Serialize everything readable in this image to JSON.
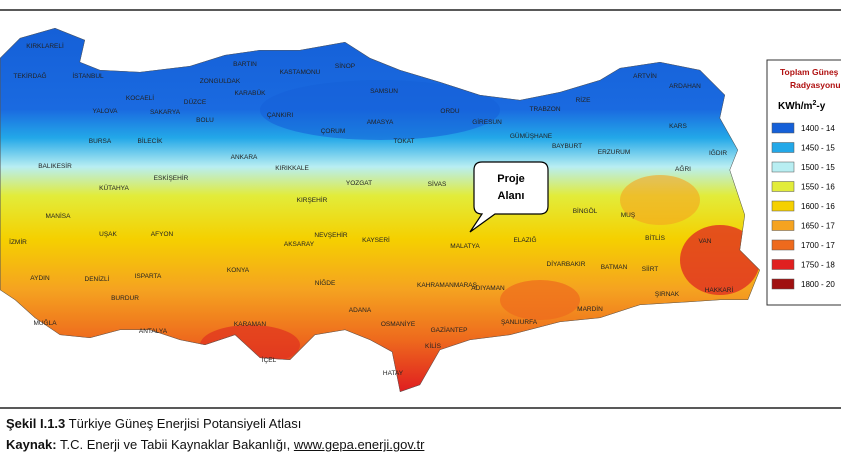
{
  "map": {
    "cities": [
      "KIRKLARELİ",
      "TEKİRDAĞ",
      "İSTANBUL",
      "BARTIN",
      "KASTAMONU",
      "SİNOP",
      "ZONGULDAK",
      "KARABÜK",
      "SAMSUN",
      "KOCAELİ",
      "DÜZCE",
      "YALOVA",
      "SAKARYA",
      "BOLU",
      "ÇANKIRI",
      "AMASYA",
      "ORDU",
      "GİRESUN",
      "TRABZON",
      "RİZE",
      "ARTVİN",
      "ARDAHAN",
      "KARS",
      "GÜMÜŞHANE",
      "BAYBURT",
      "BURSA",
      "BİLECİK",
      "ÇORUM",
      "TOKAT",
      "ERZURUM",
      "IĞDIR",
      "ANKARA",
      "KIRIKKALE",
      "BALIKESİR",
      "ESKİŞEHİR",
      "YOZGAT",
      "SİVAS",
      "AĞRI",
      "KÜTAHYA",
      "KIRŞEHİR",
      "BİNGÖL",
      "MUŞ",
      "MANİSA",
      "UŞAK",
      "AFYON",
      "NEVŞEHİR",
      "KAYSERİ",
      "MALATYA",
      "ELAZIĞ",
      "BİTLİS",
      "VAN",
      "İZMİR",
      "AKSARAY",
      "KONYA",
      "DİYARBAKIR",
      "BATMAN",
      "SİİRT",
      "AYDIN",
      "DENİZLİ",
      "ISPARTA",
      "NİĞDE",
      "KAHRAMANMARAŞ",
      "ADIYAMAN",
      "ŞIRNAK",
      "HAKKARİ",
      "BURDUR",
      "MARDİN",
      "ADANA",
      "OSMANİYE",
      "ŞANLIURFA",
      "GAZİANTEP",
      "MUĞLA",
      "ANTALYA",
      "KARAMAN",
      "KİLİS",
      "İÇEL",
      "HATAY"
    ],
    "callout": [
      "Proje",
      "Alanı"
    ],
    "legend": {
      "title": [
        "Toplam Güneş",
        "Radyasyonu"
      ],
      "unit": "KWh/m",
      "unit_sup": "2",
      "unit_tail": "-y",
      "items": [
        {
          "label": "1400 - 14",
          "color": "#1560d8"
        },
        {
          "label": "1450 - 15",
          "color": "#23a8e8"
        },
        {
          "label": "1500 - 15",
          "color": "#b8eef2"
        },
        {
          "label": "1550 - 16",
          "color": "#e2ec3a"
        },
        {
          "label": "1600 - 16",
          "color": "#f5d000"
        },
        {
          "label": "1650 - 17",
          "color": "#f5a320"
        },
        {
          "label": "1700 - 17",
          "color": "#ee6a1d"
        },
        {
          "label": "1750 - 18",
          "color": "#e02020"
        },
        {
          "label": "1800 - 20",
          "color": "#a01010"
        }
      ]
    }
  },
  "caption": {
    "figure_label": "Şekil I.1.3",
    "figure_title": "Türkiye Güneş Enerjisi Potansiyeli Atlası",
    "source_label": "Kaynak:",
    "source_text": "T.C. Enerji ve Tabii Kaynaklar Bakanlığı,",
    "source_link": "www.gepa.enerji.gov.tr"
  }
}
